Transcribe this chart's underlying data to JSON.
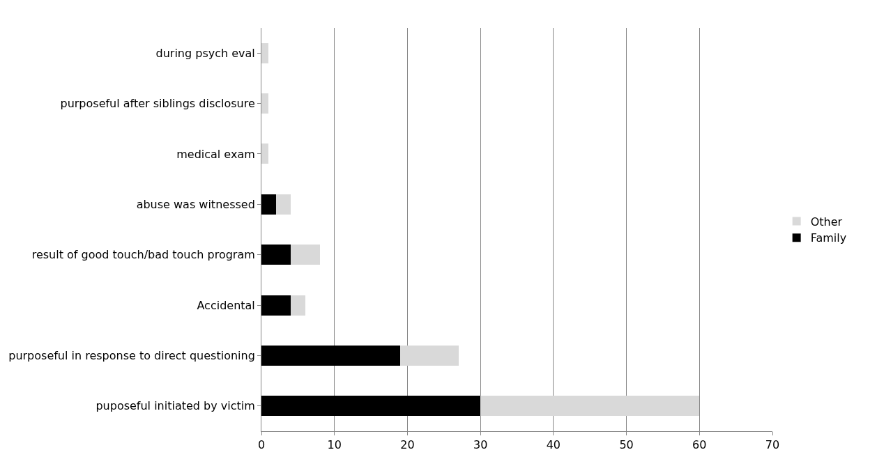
{
  "chart_data": {
    "type": "bar",
    "orientation": "horizontal",
    "stacked": true,
    "categories": [
      "during psych eval",
      "purposeful after siblings disclosure",
      "medical exam",
      "abuse was witnessed",
      "result of good touch/bad touch program",
      "Accidental",
      "purposeful in response to direct questioning",
      "puposeful initiated by victim"
    ],
    "series": [
      {
        "name": "Family",
        "color": "#000000",
        "values": [
          0,
          0,
          0,
          2,
          4,
          4,
          19,
          30
        ]
      },
      {
        "name": "Other",
        "color": "#d9d9d9",
        "values": [
          1,
          1,
          1,
          2,
          4,
          2,
          8,
          30
        ]
      }
    ],
    "xlim": [
      0,
      70
    ],
    "xticks": [
      0,
      10,
      20,
      30,
      40,
      50,
      60,
      70
    ],
    "grid": "x",
    "legend": "right"
  }
}
